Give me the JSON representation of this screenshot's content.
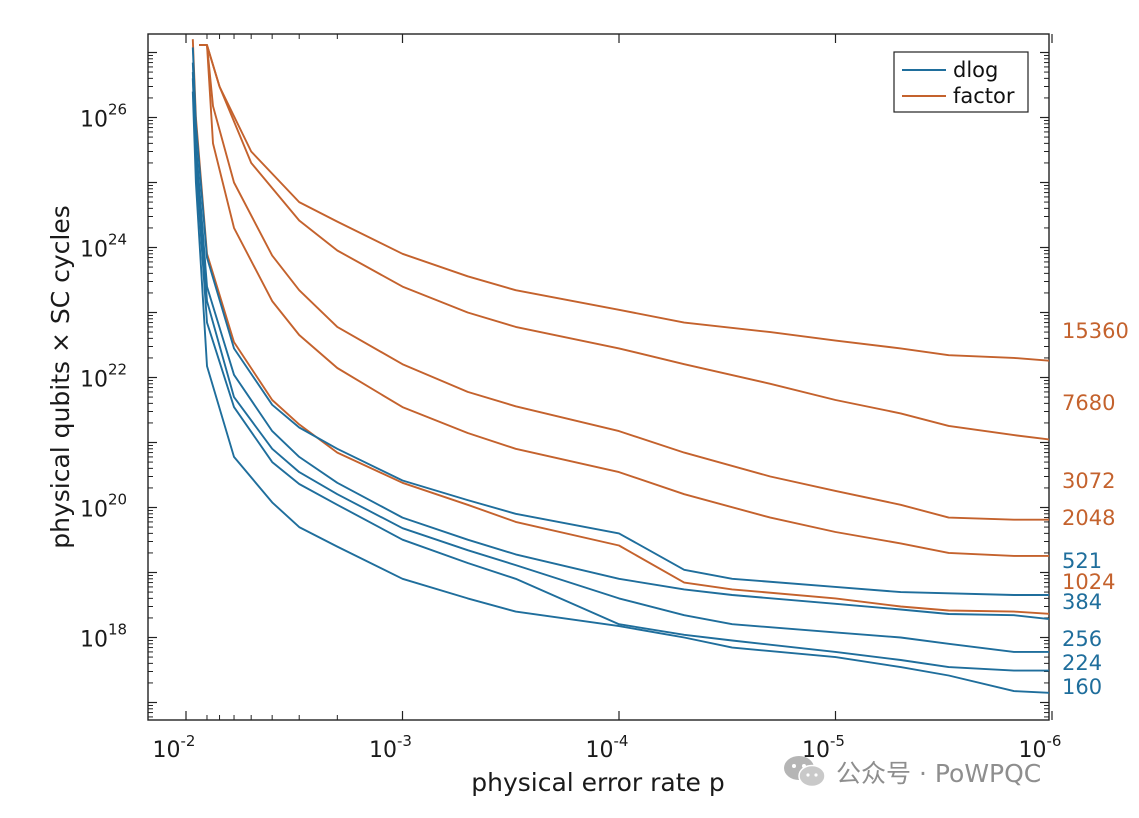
{
  "colors": {
    "dlog": "#1f6e9c",
    "factor": "#c4622d",
    "axis": "#222222",
    "watermark": "#9a9a9a"
  },
  "watermark": {
    "icon": "wechat-icon",
    "text": "公众号 · PoWPQC"
  },
  "chart_data": {
    "type": "line",
    "xlabel": "physical error rate p",
    "ylabel": "physical qubits × SC cycles",
    "x_scale": "log",
    "x_reversed": true,
    "y_scale": "log",
    "xlim": [
      0.0089,
      1e-06
    ],
    "ylim": [
      1e+17,
      1.3e+27
    ],
    "x_ticks": [
      {
        "value": 0.01,
        "base": "10",
        "exp": "-2"
      },
      {
        "value": 0.001,
        "base": "10",
        "exp": "-3"
      },
      {
        "value": 0.0001,
        "base": "10",
        "exp": "-4"
      },
      {
        "value": 1e-05,
        "base": "10",
        "exp": "-5"
      },
      {
        "value": 1e-06,
        "base": "10",
        "exp": "-6"
      }
    ],
    "y_ticks": [
      {
        "value": 1e+18,
        "base": "10",
        "exp": "18"
      },
      {
        "value": 1e+20,
        "base": "10",
        "exp": "20"
      },
      {
        "value": 1e+22,
        "base": "10",
        "exp": "22"
      },
      {
        "value": 1e+24,
        "base": "10",
        "exp": "24"
      },
      {
        "value": 1e+26,
        "base": "10",
        "exp": "26"
      }
    ],
    "grid": false,
    "legend": {
      "position": "top-right",
      "entries": [
        {
          "name": "dlog",
          "color": "#1f6e9c"
        },
        {
          "name": "factor",
          "color": "#c4622d"
        }
      ]
    },
    "series": [
      {
        "kind": "factor",
        "label": "15360",
        "label_offset": 0,
        "points": [
          [
            0.0087,
            1.3e+27
          ],
          [
            0.008,
            1.3e+27
          ],
          [
            0.007,
            3e+26
          ],
          [
            0.005,
            3e+25
          ],
          [
            0.003,
            5e+24
          ],
          [
            0.002,
            2.5e+24
          ],
          [
            0.001,
            8e+23
          ],
          [
            0.0005,
            3.6e+23
          ],
          [
            0.0003,
            2.2e+23
          ],
          [
            0.0001,
            1.1e+23
          ],
          [
            5e-05,
            7e+22
          ],
          [
            2e-05,
            5e+22
          ],
          [
            1e-05,
            3.7e+22
          ],
          [
            5e-06,
            2.8e+22
          ],
          [
            3e-06,
            2.2e+22
          ],
          [
            1.5e-06,
            2e+22
          ],
          [
            1e-06,
            1.8e+22
          ]
        ]
      },
      {
        "kind": "factor",
        "label": "7680",
        "label_offset": 0,
        "points": [
          [
            0.0086,
            1.3e+27
          ],
          [
            0.008,
            1.3e+27
          ],
          [
            0.007,
            3e+26
          ],
          [
            0.005,
            2e+25
          ],
          [
            0.003,
            2.6e+24
          ],
          [
            0.002,
            9e+23
          ],
          [
            0.001,
            2.5e+23
          ],
          [
            0.0005,
            1e+23
          ],
          [
            0.0003,
            6e+22
          ],
          [
            0.0001,
            2.8e+22
          ],
          [
            5e-05,
            1.6e+22
          ],
          [
            2e-05,
            8e+21
          ],
          [
            1e-05,
            4.5e+21
          ],
          [
            5e-06,
            2.8e+21
          ],
          [
            3e-06,
            1.8e+21
          ],
          [
            1.5e-06,
            1.3e+21
          ],
          [
            1e-06,
            1.1e+21
          ]
        ]
      },
      {
        "kind": "factor",
        "label": "3072",
        "label_offset": 0,
        "points": [
          [
            0.0087,
            1.3e+27
          ],
          [
            0.008,
            1.3e+27
          ],
          [
            0.0075,
            1.5e+26
          ],
          [
            0.006,
            1e+25
          ],
          [
            0.004,
            7.5e+23
          ],
          [
            0.003,
            2.2e+23
          ],
          [
            0.002,
            6e+22
          ],
          [
            0.001,
            1.6e+22
          ],
          [
            0.0005,
            6e+21
          ],
          [
            0.0003,
            3.6e+21
          ],
          [
            0.0001,
            1.5e+21
          ],
          [
            5e-05,
            7e+20
          ],
          [
            2e-05,
            3e+20
          ],
          [
            1e-05,
            1.8e+20
          ],
          [
            5e-06,
            1.1e+20
          ],
          [
            3e-06,
            7e+19
          ],
          [
            1.5e-06,
            6.5e+19
          ],
          [
            1e-06,
            6.5e+19
          ]
        ]
      },
      {
        "kind": "factor",
        "label": "2048",
        "label_offset": 0,
        "points": [
          [
            0.0087,
            1.3e+27
          ],
          [
            0.008,
            1.3e+27
          ],
          [
            0.0075,
            4e+25
          ],
          [
            0.006,
            2e+24
          ],
          [
            0.004,
            1.5e+23
          ],
          [
            0.003,
            4.5e+22
          ],
          [
            0.002,
            1.4e+22
          ],
          [
            0.001,
            3.5e+21
          ],
          [
            0.0005,
            1.4e+21
          ],
          [
            0.0003,
            8e+20
          ],
          [
            0.0001,
            3.5e+20
          ],
          [
            5e-05,
            1.6e+20
          ],
          [
            2e-05,
            7e+19
          ],
          [
            1e-05,
            4.2e+19
          ],
          [
            5e-06,
            2.8e+19
          ],
          [
            3e-06,
            2e+19
          ],
          [
            1.5e-06,
            1.8e+19
          ],
          [
            1e-06,
            1.8e+19
          ]
        ]
      },
      {
        "kind": "factor",
        "label": "1024",
        "label_offset": 0,
        "points": [
          [
            0.0093,
            1.6e+27
          ],
          [
            0.009,
            1e+26
          ],
          [
            0.008,
            8e+23
          ],
          [
            0.006,
            3.5e+22
          ],
          [
            0.004,
            4.5e+21
          ],
          [
            0.003,
            1.9e+21
          ],
          [
            0.002,
            7e+20
          ],
          [
            0.001,
            2.4e+20
          ],
          [
            0.0005,
            1.1e+20
          ],
          [
            0.0003,
            6e+19
          ],
          [
            0.0001,
            2.6e+19
          ],
          [
            5e-05,
            7e+18
          ],
          [
            3e-05,
            5.5e+18
          ],
          [
            1e-05,
            4e+18
          ],
          [
            5e-06,
            3e+18
          ],
          [
            3e-06,
            2.6e+18
          ],
          [
            1.5e-06,
            2.5e+18
          ],
          [
            1e-06,
            2.3e+18
          ]
        ]
      },
      {
        "kind": "dlog",
        "label": "521",
        "label_offset": 0,
        "points": [
          [
            0.0093,
            1.2e+27
          ],
          [
            0.009,
            8e+25
          ],
          [
            0.008,
            7e+23
          ],
          [
            0.006,
            2.8e+22
          ],
          [
            0.004,
            3.8e+21
          ],
          [
            0.003,
            1.7e+21
          ],
          [
            0.002,
            8e+20
          ],
          [
            0.001,
            2.6e+20
          ],
          [
            0.0005,
            1.3e+20
          ],
          [
            0.0003,
            8e+19
          ],
          [
            0.0001,
            4e+19
          ],
          [
            5e-05,
            1.1e+19
          ],
          [
            3e-05,
            8e+18
          ],
          [
            1e-05,
            6e+18
          ],
          [
            5e-06,
            5e+18
          ],
          [
            1.5e-06,
            4.5e+18
          ],
          [
            1e-06,
            4.5e+18
          ]
        ]
      },
      {
        "kind": "dlog",
        "label": "384",
        "label_offset": 0,
        "points": [
          [
            0.0093,
            7e+26
          ],
          [
            0.009,
            4e+25
          ],
          [
            0.008,
            2.5e+23
          ],
          [
            0.006,
            1.1e+22
          ],
          [
            0.004,
            1.5e+21
          ],
          [
            0.003,
            6e+20
          ],
          [
            0.002,
            2.4e+20
          ],
          [
            0.001,
            7e+19
          ],
          [
            0.0005,
            3.2e+19
          ],
          [
            0.0003,
            1.9e+19
          ],
          [
            0.0001,
            8e+18
          ],
          [
            5e-05,
            5.5e+18
          ],
          [
            3e-05,
            4.5e+18
          ],
          [
            1e-05,
            3.3e+18
          ],
          [
            5e-06,
            2.7e+18
          ],
          [
            3e-06,
            2.3e+18
          ],
          [
            1.5e-06,
            2.2e+18
          ],
          [
            1e-06,
            1.9e+18
          ]
        ]
      },
      {
        "kind": "dlog",
        "label": "256",
        "label_offset": 0,
        "points": [
          [
            0.0093,
            5e+26
          ],
          [
            0.009,
            3e+25
          ],
          [
            0.008,
            1.5e+23
          ],
          [
            0.006,
            5e+21
          ],
          [
            0.004,
            8e+20
          ],
          [
            0.003,
            3.5e+20
          ],
          [
            0.002,
            1.6e+20
          ],
          [
            0.001,
            4.8e+19
          ],
          [
            0.0005,
            2.2e+19
          ],
          [
            0.0003,
            1.3e+19
          ],
          [
            0.0001,
            4e+18
          ],
          [
            5e-05,
            2.2e+18
          ],
          [
            3e-05,
            1.6e+18
          ],
          [
            1e-05,
            1.2e+18
          ],
          [
            5e-06,
            1e+18
          ],
          [
            3e-06,
            8e+17
          ],
          [
            1.5e-06,
            6e+17
          ],
          [
            1e-06,
            6e+17
          ]
        ]
      },
      {
        "kind": "dlog",
        "label": "224",
        "label_offset": 0,
        "points": [
          [
            0.0093,
            4e+26
          ],
          [
            0.009,
            2e+25
          ],
          [
            0.008,
            7e+22
          ],
          [
            0.006,
            3.5e+21
          ],
          [
            0.004,
            5e+20
          ],
          [
            0.003,
            2.3e+20
          ],
          [
            0.002,
            1.1e+20
          ],
          [
            0.001,
            3.2e+19
          ],
          [
            0.0005,
            1.4e+19
          ],
          [
            0.0003,
            8e+18
          ],
          [
            0.0001,
            1.6e+18
          ],
          [
            5e-05,
            1.1e+18
          ],
          [
            3e-05,
            9e+17
          ],
          [
            1e-05,
            6e+17
          ],
          [
            5e-06,
            4.5e+17
          ],
          [
            3e-06,
            3.5e+17
          ],
          [
            1.5e-06,
            3.1e+17
          ],
          [
            1e-06,
            3.1e+17
          ]
        ]
      },
      {
        "kind": "dlog",
        "label": "160",
        "label_offset": 0,
        "points": [
          [
            0.0093,
            2.5e+26
          ],
          [
            0.009,
            1e+25
          ],
          [
            0.008,
            1.5e+22
          ],
          [
            0.006,
            6e+20
          ],
          [
            0.004,
            1.2e+20
          ],
          [
            0.003,
            5e+19
          ],
          [
            0.002,
            2.5e+19
          ],
          [
            0.001,
            8e+18
          ],
          [
            0.0005,
            4e+18
          ],
          [
            0.0003,
            2.5e+18
          ],
          [
            0.0001,
            1.5e+18
          ],
          [
            5e-05,
            1e+18
          ],
          [
            3e-05,
            7e+17
          ],
          [
            1e-05,
            5e+17
          ],
          [
            5e-06,
            3.5e+17
          ],
          [
            3e-06,
            2.6e+17
          ],
          [
            1.5e-06,
            1.5e+17
          ],
          [
            1e-06,
            1.4e+17
          ]
        ]
      }
    ]
  }
}
